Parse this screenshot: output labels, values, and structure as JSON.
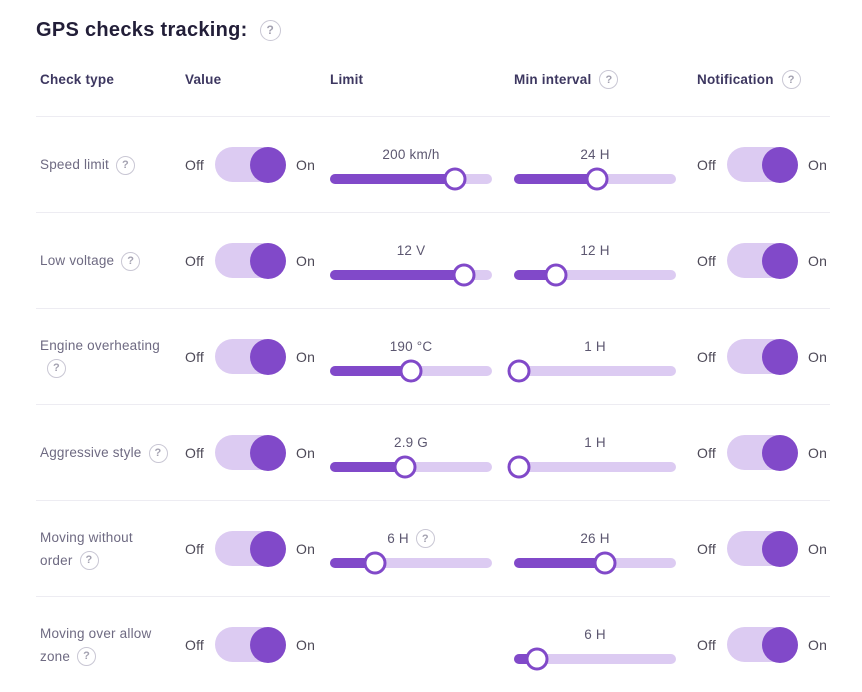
{
  "title": {
    "text": "GPS checks tracking:",
    "help_glyph": "?"
  },
  "labels": {
    "off": "Off",
    "on": "On",
    "help_glyph": "?"
  },
  "colors": {
    "accent": "#8149C9",
    "track_light": "#DCCBF2"
  },
  "table": {
    "headers": {
      "check_type": "Check type",
      "value": "Value",
      "limit": "Limit",
      "min_interval": "Min interval",
      "notification": "Notification"
    },
    "rows": [
      {
        "check_type": "Speed limit",
        "value_on": true,
        "limit": {
          "label": "200 km/h",
          "percent": 77
        },
        "min_interval": {
          "label": "24 H",
          "percent": 51
        },
        "notification_on": true
      },
      {
        "check_type": "Low voltage",
        "value_on": true,
        "limit": {
          "label": "12 V",
          "percent": 83
        },
        "min_interval": {
          "label": "12 H",
          "percent": 26
        },
        "notification_on": true
      },
      {
        "check_type": "Engine overheating",
        "value_on": true,
        "limit": {
          "label": "190 °C",
          "percent": 50
        },
        "min_interval": {
          "label": "1 H",
          "percent": 3
        },
        "notification_on": true
      },
      {
        "check_type": "Aggressive style",
        "value_on": true,
        "limit": {
          "label": "2.9 G",
          "percent": 46
        },
        "min_interval": {
          "label": "1 H",
          "percent": 3
        },
        "notification_on": true
      },
      {
        "check_type": "Moving without order",
        "value_on": true,
        "limit": {
          "label": "6 H",
          "percent": 28,
          "help": true
        },
        "min_interval": {
          "label": "26 H",
          "percent": 56
        },
        "notification_on": true
      },
      {
        "check_type": "Moving over allow zone",
        "value_on": true,
        "limit": null,
        "min_interval": {
          "label": "6 H",
          "percent": 14
        },
        "notification_on": true
      }
    ]
  }
}
